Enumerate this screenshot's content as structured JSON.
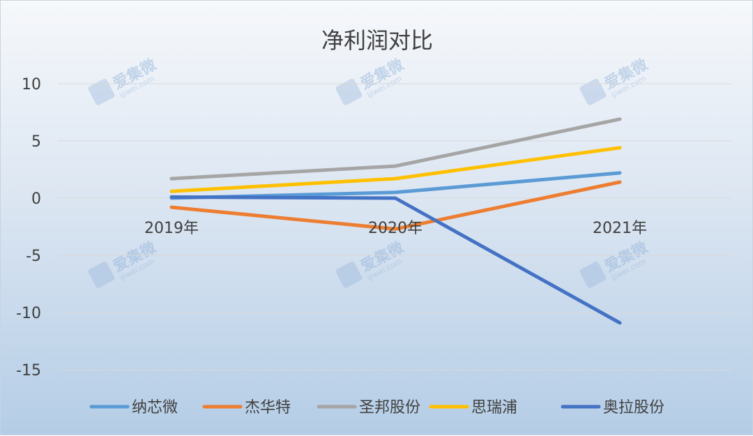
{
  "chart_data": {
    "type": "line",
    "title": "净利润对比",
    "categories": [
      "2019年",
      "2020年",
      "2021年"
    ],
    "ylim": [
      -15,
      10
    ],
    "yticks": [
      10,
      5,
      0,
      -5,
      -10,
      -15
    ],
    "grid": true,
    "legend_position": "bottom",
    "series": [
      {
        "name": "纳芯微",
        "color": "#5b9bd5",
        "values": [
          0.0,
          0.5,
          2.2
        ]
      },
      {
        "name": "杰华特",
        "color": "#ed7d31",
        "values": [
          -0.8,
          -2.7,
          1.4
        ]
      },
      {
        "name": "圣邦股份",
        "color": "#a5a5a5",
        "values": [
          1.7,
          2.8,
          6.9
        ]
      },
      {
        "name": "思瑞浦",
        "color": "#ffc000",
        "values": [
          0.6,
          1.7,
          4.4
        ]
      },
      {
        "name": "奥拉股份",
        "color": "#4472c4",
        "values": [
          0.1,
          0.0,
          -10.9
        ]
      }
    ]
  },
  "watermark": {
    "text": "爱集微",
    "sub": "ijiwei.com"
  }
}
